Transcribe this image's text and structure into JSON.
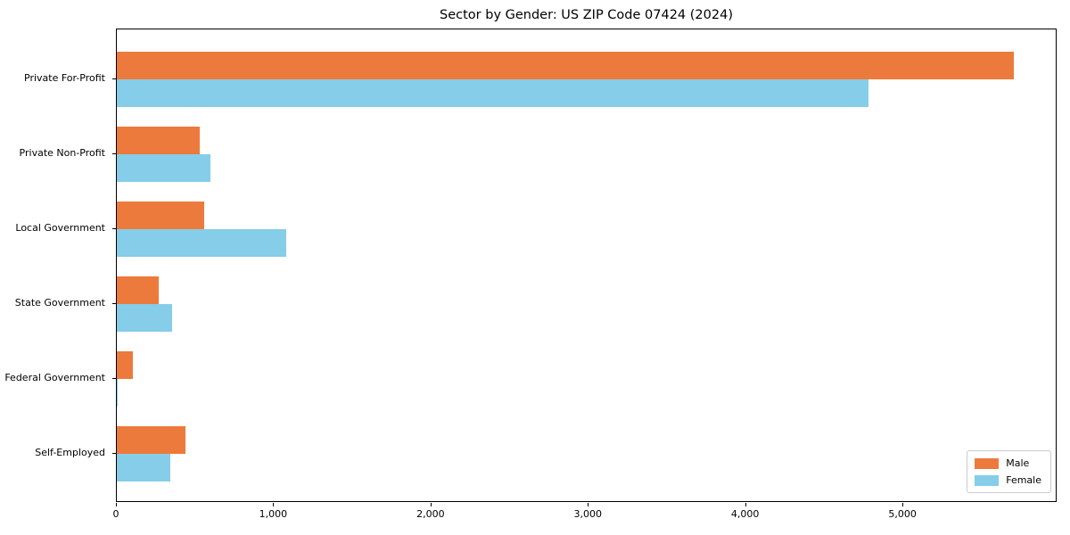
{
  "chart_data": {
    "type": "bar",
    "orientation": "horizontal",
    "title": "Sector by Gender: US ZIP Code 07424 (2024)",
    "categories": [
      "Private For-Profit",
      "Private Non-Profit",
      "Local Government",
      "State Government",
      "Federal Government",
      "Self-Employed"
    ],
    "series": [
      {
        "name": "Male",
        "color": "#EC7A3C",
        "values": [
          5700,
          527,
          556,
          266,
          102,
          437
        ]
      },
      {
        "name": "Female",
        "color": "#85CDE8",
        "values": [
          4780,
          596,
          1077,
          351,
          5,
          340
        ]
      }
    ],
    "xlabel": "",
    "ylabel": "",
    "xlim": [
      0,
      5980
    ],
    "xticks": [
      0,
      1000,
      2000,
      3000,
      4000,
      5000
    ],
    "xtick_labels": [
      "0",
      "1,000",
      "2,000",
      "3,000",
      "4,000",
      "5,000"
    ],
    "grid": false,
    "legend": {
      "position": "lower right"
    },
    "axis_color": "#000000",
    "background": "#ffffff"
  }
}
